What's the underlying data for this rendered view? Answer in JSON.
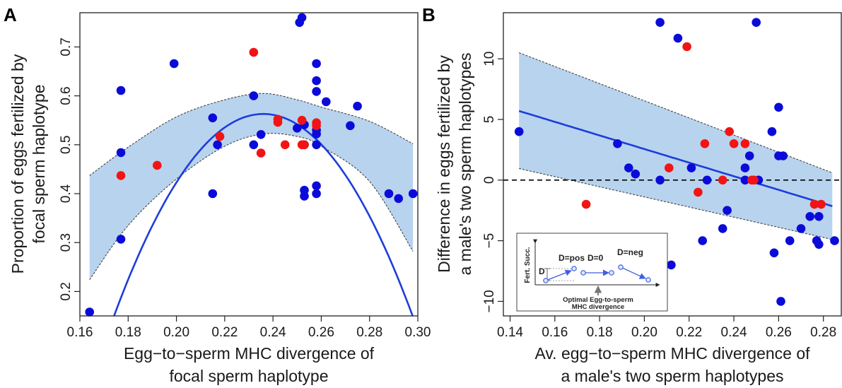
{
  "colors": {
    "blue": "#0b0bd9",
    "red": "#f21414",
    "band": "#b8d3ee",
    "line": "#1d3ddb",
    "inset_line": "#3d5fe0"
  },
  "chart_data": [
    {
      "type": "scatter",
      "panel_label": "A",
      "xlabel": [
        "Egg−to−sperm MHC divergence of",
        "focal sperm haplotype"
      ],
      "ylabel": [
        "Proportion of eggs fertilized by",
        "focal sperm haplotype"
      ],
      "xlim": [
        0.16,
        0.3
      ],
      "ylim": [
        0.15,
        0.77
      ],
      "xticks": [
        "0.16",
        "0.18",
        "0.20",
        "0.22",
        "0.24",
        "0.26",
        "0.28",
        "0.30"
      ],
      "xtick_values": [
        0.16,
        0.18,
        0.2,
        0.22,
        0.24,
        0.26,
        0.28,
        0.3
      ],
      "yticks": [
        "0.2",
        "0.3",
        "0.4",
        "0.5",
        "0.6",
        "0.7"
      ],
      "ytick_values": [
        0.2,
        0.3,
        0.4,
        0.5,
        0.6,
        0.7
      ],
      "fit": {
        "type": "quadratic",
        "vertex_x": 0.236,
        "vertex_y": 0.563,
        "a": -108.0,
        "x_range": [
          0.164,
          0.298
        ]
      },
      "ci": {
        "x": [
          0.164,
          0.18,
          0.2,
          0.22,
          0.236,
          0.25,
          0.26,
          0.28,
          0.298
        ],
        "upper": [
          0.437,
          0.495,
          0.557,
          0.592,
          0.605,
          0.592,
          0.577,
          0.548,
          0.502
        ],
        "lower": [
          0.224,
          0.335,
          0.43,
          0.497,
          0.522,
          0.517,
          0.497,
          0.425,
          0.282
        ]
      },
      "series": [
        {
          "color_key": "blue",
          "points": [
            [
              0.164,
              0.158
            ],
            [
              0.177,
              0.611
            ],
            [
              0.177,
              0.484
            ],
            [
              0.177,
              0.307
            ],
            [
              0.199,
              0.666
            ],
            [
              0.215,
              0.555
            ],
            [
              0.215,
              0.4
            ],
            [
              0.217,
              0.5
            ],
            [
              0.232,
              0.6
            ],
            [
              0.232,
              0.5
            ],
            [
              0.235,
              0.521
            ],
            [
              0.25,
              0.534
            ],
            [
              0.251,
              0.75
            ],
            [
              0.252,
              0.76
            ],
            [
              0.253,
              0.541
            ],
            [
              0.253,
              0.5
            ],
            [
              0.253,
              0.407
            ],
            [
              0.253,
              0.395
            ],
            [
              0.258,
              0.666
            ],
            [
              0.258,
              0.631
            ],
            [
              0.258,
              0.609
            ],
            [
              0.258,
              0.53
            ],
            [
              0.258,
              0.522
            ],
            [
              0.258,
              0.5
            ],
            [
              0.258,
              0.416
            ],
            [
              0.258,
              0.4
            ],
            [
              0.262,
              0.588
            ],
            [
              0.272,
              0.539
            ],
            [
              0.275,
              0.579
            ],
            [
              0.288,
              0.4
            ],
            [
              0.292,
              0.39
            ],
            [
              0.298,
              0.4
            ]
          ]
        },
        {
          "color_key": "red",
          "points": [
            [
              0.177,
              0.437
            ],
            [
              0.192,
              0.458
            ],
            [
              0.218,
              0.517
            ],
            [
              0.232,
              0.689
            ],
            [
              0.235,
              0.483
            ],
            [
              0.242,
              0.552
            ],
            [
              0.242,
              0.546
            ],
            [
              0.245,
              0.5
            ],
            [
              0.252,
              0.55
            ],
            [
              0.252,
              0.5
            ],
            [
              0.253,
              0.5
            ],
            [
              0.258,
              0.545
            ],
            [
              0.258,
              0.539
            ]
          ]
        }
      ]
    },
    {
      "type": "scatter",
      "panel_label": "B",
      "xlabel": [
        "Av. egg−to−sperm MHC divergence of",
        "a male's two sperm haplotypes"
      ],
      "ylabel": [
        "Difference in eggs fertilized by",
        "a male's two sperm haplotypes"
      ],
      "xlim": [
        0.137,
        0.288
      ],
      "ylim": [
        -11.2,
        13.8
      ],
      "xticks": [
        "0.14",
        "0.16",
        "0.18",
        "0.20",
        "0.22",
        "0.24",
        "0.26",
        "0.28"
      ],
      "xtick_values": [
        0.14,
        0.16,
        0.18,
        0.2,
        0.22,
        0.24,
        0.26,
        0.28
      ],
      "yticks": [
        "−10",
        "−5",
        "0",
        "5",
        "10"
      ],
      "ytick_values": [
        -10,
        -5,
        0,
        5,
        10
      ],
      "fit": {
        "type": "linear",
        "x": [
          0.144,
          0.284
        ],
        "y": [
          5.7,
          -2.15
        ]
      },
      "ci": {
        "x": [
          0.144,
          0.284
        ],
        "upper": [
          10.5,
          0.6
        ],
        "lower": [
          0.95,
          -4.9
        ]
      },
      "zero_line": 0,
      "series": [
        {
          "color_key": "blue",
          "points": [
            [
              0.144,
              4.0
            ],
            [
              0.188,
              3.0
            ],
            [
              0.193,
              1.0
            ],
            [
              0.196,
              0.5
            ],
            [
              0.207,
              13.0
            ],
            [
              0.207,
              0.0
            ],
            [
              0.212,
              -7.0
            ],
            [
              0.215,
              11.7
            ],
            [
              0.221,
              1.0
            ],
            [
              0.226,
              -5.0
            ],
            [
              0.228,
              0.0
            ],
            [
              0.235,
              -4.0
            ],
            [
              0.237,
              -2.5
            ],
            [
              0.245,
              1.0
            ],
            [
              0.245,
              0.0
            ],
            [
              0.247,
              2.0
            ],
            [
              0.25,
              13.0
            ],
            [
              0.251,
              0.0
            ],
            [
              0.257,
              4.0
            ],
            [
              0.258,
              -6.0
            ],
            [
              0.26,
              6.0
            ],
            [
              0.26,
              2.0
            ],
            [
              0.261,
              -10.0
            ],
            [
              0.262,
              2.0
            ],
            [
              0.265,
              -5.0
            ],
            [
              0.27,
              -4.0
            ],
            [
              0.274,
              -3.0
            ],
            [
              0.277,
              -5.0
            ],
            [
              0.278,
              -5.3
            ],
            [
              0.278,
              -3.0
            ],
            [
              0.285,
              -5.0
            ]
          ]
        },
        {
          "color_key": "red",
          "points": [
            [
              0.174,
              -2.0
            ],
            [
              0.211,
              1.0
            ],
            [
              0.219,
              11.0
            ],
            [
              0.224,
              -1.0
            ],
            [
              0.227,
              3.0
            ],
            [
              0.235,
              0.0
            ],
            [
              0.238,
              4.0
            ],
            [
              0.24,
              3.0
            ],
            [
              0.245,
              3.0
            ],
            [
              0.248,
              0.0
            ],
            [
              0.249,
              0.0
            ],
            [
              0.276,
              -2.0
            ],
            [
              0.279,
              -2.0
            ]
          ]
        }
      ],
      "inset": {
        "y_axis_label": "Fert. Succ.",
        "d_label": "D",
        "cases": [
          "D=pos",
          "D=0",
          "D=neg"
        ],
        "arrow_label": [
          "Optimal Egg-to-sperm",
          "MHC divergence"
        ]
      }
    }
  ]
}
